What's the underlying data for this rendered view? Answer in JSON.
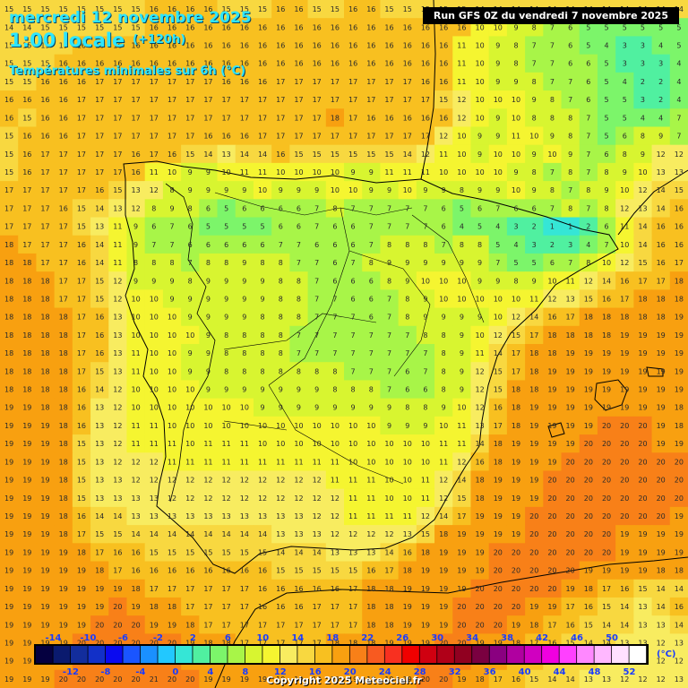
{
  "header": {
    "date_line": "mercredi 12 novembre 2025",
    "time_line": "1:00 locale",
    "lead_time": "(+120h)",
    "subtitle": "Températures minimales sur 6h (°C)",
    "run_info": "Run GFS 0Z du vendredi 7 novembre 2025"
  },
  "footer": {
    "copyright": "Copyright 2025 Meteociel.fr"
  },
  "legend": {
    "unit": "(°C)",
    "top_labels": [
      "-14",
      "-10",
      "-6",
      "-2",
      "2",
      "6",
      "10",
      "14",
      "18",
      "22",
      "26",
      "30",
      "34",
      "38",
      "42",
      "46",
      "50"
    ],
    "bottom_labels": [
      "-12",
      "-8",
      "-4",
      "0",
      "4",
      "8",
      "12",
      "16",
      "20",
      "24",
      "28",
      "32",
      "36",
      "40",
      "44",
      "48",
      "52"
    ],
    "colors": [
      "#050040",
      "#0a1a6e",
      "#122d9c",
      "#1230c8",
      "#0a0af0",
      "#1a55ff",
      "#1a90ff",
      "#22c8ff",
      "#35e6d6",
      "#50f0a0",
      "#7cf56a",
      "#a8f548",
      "#d8f530",
      "#f5f530",
      "#f8ec60",
      "#f8d840",
      "#f8c020",
      "#f8a010",
      "#f88018",
      "#f85a20",
      "#f83020",
      "#f00000",
      "#d00010",
      "#b00018",
      "#900020",
      "#7a0040",
      "#8a0080",
      "#b000a0",
      "#d000c0",
      "#f000e0",
      "#ff40ff",
      "#ff88ff",
      "#ffb8ff",
      "#ffe0ff",
      "#ffffff"
    ]
  },
  "map": {
    "grid": {
      "cols": 38,
      "rows": 38,
      "rows_shown": [
        "15 15 15 15 15 15 15 15 16 16 16 16 15 15 15 16 16 15 15 16 16 15 15 15 15 15 14 14 14 14 14 14 14 14 14 14 14 14",
        "14 14 15 15 15 15 15 15 16 16 16 16 16 16 16 16 16 16 16 16 16 16 16 16 16 16 10 10 9 8 7 6 5 5 5 5 5 5",
        "15 15 15 15 16 16 16 16 16 16 16 16 16 16 16 16 16 16 16 16 16 16 16 16 16 11 10 9 8 7 7 6 5 4 3 3 4 5",
        "15 15 15 16 16 16 16 16 16 16 16 16 16 16 16 16 16 16 16 16 16 16 16 16 16 11 10 9 8 7 7 6 6 5 3 3 3 4",
        "15 15 16 16 16 17 17 17 17 17 17 17 16 16 16 17 17 17 17 17 17 17 17 16 16 11 10 9 9 8 7 7 6 5 4 2 2 4",
        "16 16 16 16 17 17 17 17 17 17 17 17 17 17 17 17 17 17 17 17 17 17 17 17 15 12 10 10 10 9 8 7 6 5 5 3 2 4",
        "16 15 16 16 17 17 17 17 17 17 17 17 17 17 17 17 17 17 18 17 16 16 16 16 16 12 10 9 10 8 8 8 7 5 5 4 4 7",
        "15 16 16 16 17 17 17 17 17 17 17 16 16 16 17 17 17 17 17 17 17 17 17 17 12 10 9 9 11 10 9 8 7 5 6 8 9 7",
        "15 16 17 17 17 17 17 16 17 16 15 14 13 14 14 16 15 15 15 15 15 15 14 12 11 10 9 10 10 9 10 9 7 6 8 9 12 12",
        "15 16 17 17 17 17 17 16 11 10 9 9 10 11 11 10 10 10 10 9 9 11 11 11 10 10 10 10 9 8 7 8 7 8 9 10 13 13",
        "17 17 17 17 17 16 15 13 12 8 9 9 9 9 10 9 9 9 10 10 9 9 10 9 9 8 9 9 10 9 8 7 8 9 10 12 14 15",
        "17 17 17 16 15 14 13 12 8 9 8 6 5 6 6 6 6 7 8 7 7 7 7 7 6 5 6 7 6 6 7 8 7 8 12 13 14 16",
        "17 17 17 17 15 13 11 9 6 7 6 5 5 5 5 6 6 7 6 6 7 7 7 7 6 4 5 4 3 2 1 1 2 6 11 14 16 16",
        "18 17 17 17 16 14 11 9 7 7 6 6 6 6 6 7 7 6 6 6 7 8 8 8 7 8 8 5 4 3 2 3 4 7 10 14 16 16",
        "18 18 17 17 16 14 11 8 8 8 7 8 8 9 8 8 7 7 6 7 8 9 9 9 9 9 9 7 5 5 6 7 8 10 12 15 16 17",
        "18 18 18 17 17 15 12 9 9 9 8 9 9 9 9 8 8 7 6 6 6 8 9 10 10 10 9 9 8 9 10 11 12 14 16 17 17 18",
        "18 18 18 17 17 15 12 10 10 9 9 9 9 9 9 8 8 7 7 6 6 7 8 9 10 10 10 10 10 11 12 13 15 16 17 18 18 18",
        "18 18 18 18 17 16 13 10 10 10 9 9 9 9 8 8 8 7 7 7 6 7 8 9 9 9 9 10 12 14 16 17 18 18 18 18 18 19",
        "18 18 18 18 17 16 13 10 10 10 10 9 8 8 8 8 7 7 7 7 7 7 7 8 8 9 10 12 15 17 18 18 18 18 19 19 19 19",
        "18 18 18 18 17 16 13 11 10 10 9 9 8 8 8 8 7 7 7 7 7 7 7 7 8 9 11 14 17 18 18 19 19 19 19 19 19 19",
        "18 18 18 18 17 15 13 11 10 10 9 9 8 8 8 8 8 8 8 7 7 7 6 7 8 9 12 15 17 18 19 19 19 19 19 19 19 19",
        "18 18 18 18 16 14 12 10 10 10 10 9 9 9 9 9 9 9 8 8 8 7 6 6 8 9 12 15 18 18 19 19 19 19 19 19 19 19",
        "19 19 18 18 16 13 12 10 10 10 10 10 10 10 9 9 9 9 9 9 9 9 8 8 9 10 12 16 18 19 19 19 19 19 19 19 19 18",
        "19 19 19 18 16 13 12 11 11 10 10 10 10 10 10 10 10 10 10 10 10 9 9 9 10 11 13 17 18 19 19 19 19 20 20 20 19 18",
        "19 19 19 18 15 13 12 11 11 11 10 11 11 11 10 10 10 10 10 10 10 10 10 10 11 11 14 18 19 19 19 19 20 20 20 20 19 19",
        "19 19 19 18 15 13 12 12 12 11 11 11 11 11 11 11 11 11 11 10 10 10 10 10 11 12 16 18 19 19 19 20 20 20 20 20 20 20",
        "19 19 19 18 15 13 13 12 12 12 12 12 12 12 12 12 12 12 11 11 11 10 10 11 12 14 18 19 19 19 20 20 20 20 20 20 20 20",
        "19 19 19 18 15 13 13 13 13 12 12 12 12 12 12 12 12 12 12 11 11 10 10 11 12 15 18 19 19 19 20 20 20 20 20 20 20 20",
        "19 19 19 18 16 14 14 13 13 13 13 13 13 13 13 13 13 12 12 11 11 11 11 12 14 17 19 19 19 20 20 20 20 20 20 20 20 19",
        "19 19 19 18 17 15 15 14 14 14 14 14 14 14 14 13 13 13 12 12 12 12 13 15 18 19 19 19 19 20 20 20 20 20 19 19 19 19",
        "19 19 19 19 18 17 16 16 15 15 15 15 15 15 15 14 14 14 13 13 13 14 16 18 19 19 19 20 20 20 20 20 20 20 19 19 19 19",
        "19 19 19 19 19 18 17 16 16 16 16 16 16 16 16 15 15 15 15 15 16 17 18 19 19 19 19 20 20 20 20 20 19 19 19 19 18 18",
        "19 19 19 19 19 19 19 18 17 17 17 17 17 17 16 16 16 16 16 17 18 18 19 19 19 19 20 20 20 20 20 19 18 17 16 15 14 14",
        "19 19 19 19 19 19 20 19 18 18 17 17 17 17 16 16 16 17 17 17 18 18 19 19 19 20 20 20 20 19 19 17 16 15 14 13 14 16",
        "19 19 19 19 19 20 20 20 19 19 18 17 17 17 17 17 17 17 17 17 18 18 19 19 19 20 20 20 19 18 17 16 15 14 14 13 13 14",
        "19 19 19 19 20 20 20 20 20 20 19 18 18 17 17 17 17 17 18 18 18 19 19 19 20 20 19 19 18 17 16 15 14 14 13 13 12 13",
        "19 19 19 19 20 20 20 20 20 20 19 19 18 18 18 18 18 18 18 18 19 19 19 20 20 20 19 18 17 16 15 14 14 13 13 13 12 12",
        "19 19 19 20 20 20 20 20 21 20 20 19 19 19 19 19 19 19 19 19 19 19 19 20 20 19 18 17 16 15 14 14 13 13 12 12 12 13"
      ]
    }
  }
}
